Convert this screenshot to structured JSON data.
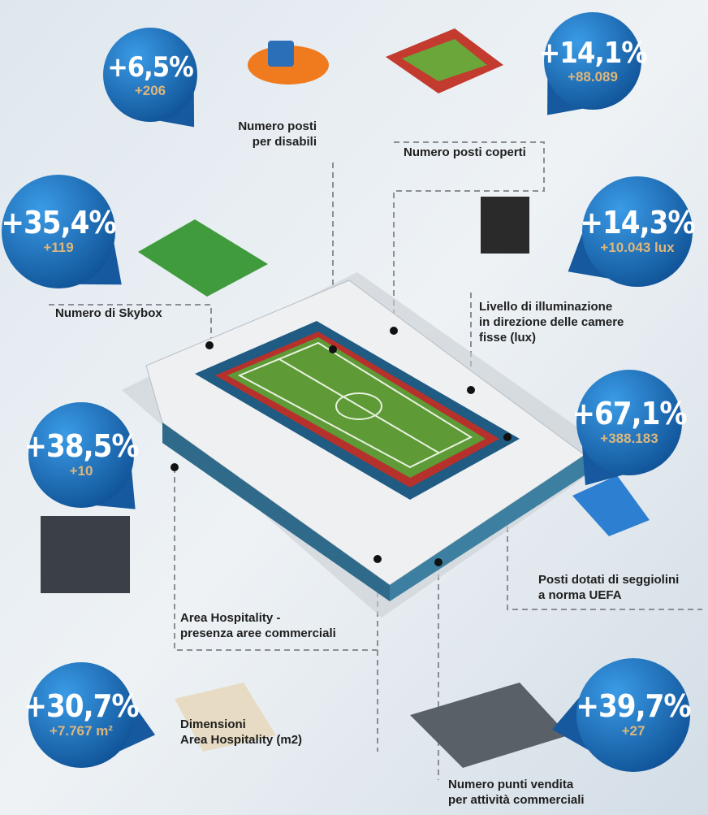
{
  "items": [
    {
      "percent": "+6,5%",
      "value": "+206",
      "label": [
        "Numero posti",
        "per disabili"
      ]
    },
    {
      "percent": "+14,1%",
      "value": "+88.089",
      "label": [
        "Numero posti  coperti"
      ]
    },
    {
      "percent": "+35,4%",
      "value": "+119",
      "label": [
        "Numero di Skybox"
      ]
    },
    {
      "percent": "+14,3%",
      "value": "+10.043 lux",
      "label": [
        "Livello di illuminazione",
        "in direzione delle camere",
        "fisse (lux)"
      ]
    },
    {
      "percent": "+67,1%",
      "value": "+388.183",
      "label": [
        "Posti dotati di seggiolini",
        "a norma UEFA"
      ]
    },
    {
      "percent": "+38,5%",
      "value": "+10",
      "label": [
        "Area Hospitality -",
        "presenza aree commerciali"
      ]
    },
    {
      "percent": "+30,7%",
      "value": "+7.767 m²",
      "label": [
        "Dimensioni",
        "Area Hospitality (m2)"
      ]
    },
    {
      "percent": "+39,7%",
      "value": "+27",
      "label": [
        "Numero punti vendita",
        "per attività commerciali"
      ]
    }
  ]
}
